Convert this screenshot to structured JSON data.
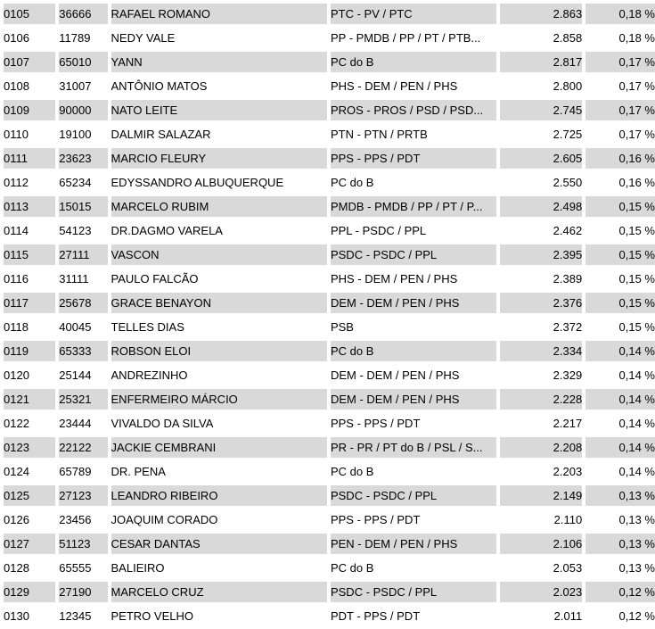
{
  "colors": {
    "row_alt_background": "#d9d9d9",
    "row_background": "#ffffff",
    "text": "#000000"
  },
  "table": {
    "rows": [
      {
        "code": "0105",
        "number": "36666",
        "name": "RAFAEL ROMANO",
        "party": "PTC - PV / PTC",
        "votes": "2.863",
        "pct": "0,18 %"
      },
      {
        "code": "0106",
        "number": "11789",
        "name": "NEDY VALE",
        "party": "PP - PMDB / PP / PT / PTB...",
        "votes": "2.858",
        "pct": "0,18 %"
      },
      {
        "code": "0107",
        "number": "65010",
        "name": "YANN",
        "party": "PC do B",
        "votes": "2.817",
        "pct": "0,17 %"
      },
      {
        "code": "0108",
        "number": "31007",
        "name": "ANTÔNIO MATOS",
        "party": "PHS - DEM / PEN / PHS",
        "votes": "2.800",
        "pct": "0,17 %"
      },
      {
        "code": "0109",
        "number": "90000",
        "name": "NATO LEITE",
        "party": "PROS - PROS / PSD / PSD...",
        "votes": "2.745",
        "pct": "0,17 %"
      },
      {
        "code": "0110",
        "number": "19100",
        "name": "DALMIR SALAZAR",
        "party": "PTN - PTN / PRTB",
        "votes": "2.725",
        "pct": "0,17 %"
      },
      {
        "code": "0111",
        "number": "23623",
        "name": "MARCIO FLEURY",
        "party": "PPS - PPS / PDT",
        "votes": "2.605",
        "pct": "0,16 %"
      },
      {
        "code": "0112",
        "number": "65234",
        "name": "EDYSSANDRO ALBUQUERQUE",
        "party": "PC do B",
        "votes": "2.550",
        "pct": "0,16 %"
      },
      {
        "code": "0113",
        "number": "15015",
        "name": "MARCELO RUBIM",
        "party": "PMDB - PMDB / PP / PT / P...",
        "votes": "2.498",
        "pct": "0,15 %"
      },
      {
        "code": "0114",
        "number": "54123",
        "name": "DR.DAGMO VARELA",
        "party": "PPL - PSDC / PPL",
        "votes": "2.462",
        "pct": "0,15 %"
      },
      {
        "code": "0115",
        "number": "27111",
        "name": "VASCON",
        "party": "PSDC - PSDC / PPL",
        "votes": "2.395",
        "pct": "0,15 %"
      },
      {
        "code": "0116",
        "number": "31111",
        "name": "PAULO FALCÃO",
        "party": "PHS - DEM / PEN / PHS",
        "votes": "2.389",
        "pct": "0,15 %"
      },
      {
        "code": "0117",
        "number": "25678",
        "name": "GRACE BENAYON",
        "party": "DEM - DEM / PEN / PHS",
        "votes": "2.376",
        "pct": "0,15 %"
      },
      {
        "code": "0118",
        "number": "40045",
        "name": "TELLES DIAS",
        "party": "PSB",
        "votes": "2.372",
        "pct": "0,15 %"
      },
      {
        "code": "0119",
        "number": "65333",
        "name": "ROBSON ELOI",
        "party": "PC do B",
        "votes": "2.334",
        "pct": "0,14 %"
      },
      {
        "code": "0120",
        "number": "25144",
        "name": "ANDREZINHO",
        "party": "DEM - DEM / PEN / PHS",
        "votes": "2.329",
        "pct": "0,14 %"
      },
      {
        "code": "0121",
        "number": "25321",
        "name": "ENFERMEIRO MÁRCIO",
        "party": "DEM - DEM / PEN / PHS",
        "votes": "2.228",
        "pct": "0,14 %"
      },
      {
        "code": "0122",
        "number": "23444",
        "name": "VIVALDO DA SILVA",
        "party": "PPS - PPS / PDT",
        "votes": "2.217",
        "pct": "0,14 %"
      },
      {
        "code": "0123",
        "number": "22122",
        "name": "JACKIE CEMBRANI",
        "party": "PR - PR / PT do B / PSL / S...",
        "votes": "2.208",
        "pct": "0,14 %"
      },
      {
        "code": "0124",
        "number": "65789",
        "name": "DR. PENA",
        "party": "PC do B",
        "votes": "2.203",
        "pct": "0,14 %"
      },
      {
        "code": "0125",
        "number": "27123",
        "name": "LEANDRO RIBEIRO",
        "party": "PSDC - PSDC / PPL",
        "votes": "2.149",
        "pct": "0,13 %"
      },
      {
        "code": "0126",
        "number": "23456",
        "name": "JOAQUIM CORADO",
        "party": "PPS - PPS / PDT",
        "votes": "2.110",
        "pct": "0,13 %"
      },
      {
        "code": "0127",
        "number": "51123",
        "name": "CESAR DANTAS",
        "party": "PEN - DEM / PEN / PHS",
        "votes": "2.106",
        "pct": "0,13 %"
      },
      {
        "code": "0128",
        "number": "65555",
        "name": "BALIEIRO",
        "party": "PC do B",
        "votes": "2.053",
        "pct": "0,13 %"
      },
      {
        "code": "0129",
        "number": "27190",
        "name": "MARCELO CRUZ",
        "party": "PSDC - PSDC / PPL",
        "votes": "2.023",
        "pct": "0,12 %"
      },
      {
        "code": "0130",
        "number": "12345",
        "name": "PETRO VELHO",
        "party": "PDT - PPS / PDT",
        "votes": "2.011",
        "pct": "0,12 %"
      }
    ]
  }
}
